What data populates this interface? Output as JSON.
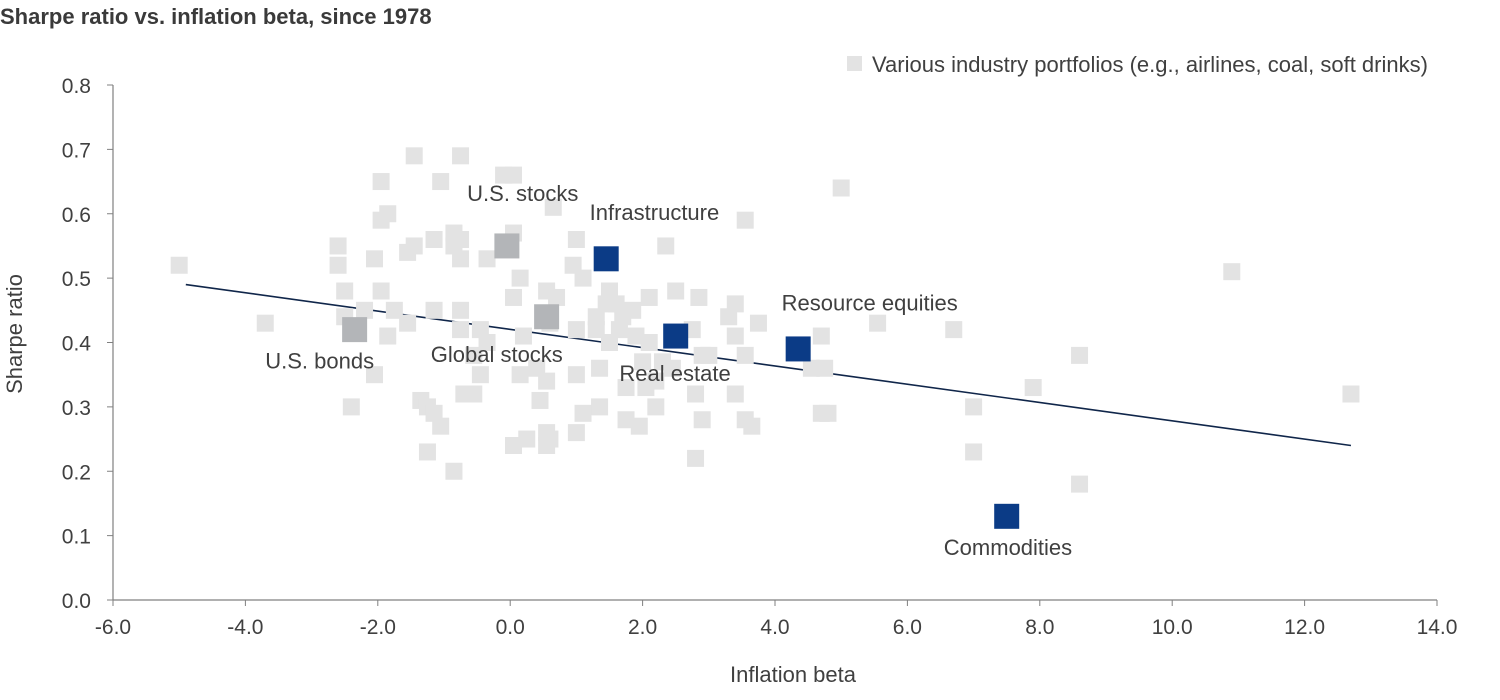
{
  "chart_data": {
    "type": "scatter",
    "title": "Sharpe ratio vs. inflation beta, since 1978",
    "xlabel": "Inflation beta",
    "ylabel": "Sharpe ratio",
    "xlim": [
      -6.0,
      14.0
    ],
    "ylim": [
      0.0,
      0.8
    ],
    "x_ticks": [
      -6.0,
      -4.0,
      -2.0,
      0.0,
      2.0,
      4.0,
      6.0,
      8.0,
      10.0,
      12.0,
      14.0
    ],
    "y_ticks": [
      0.0,
      0.1,
      0.2,
      0.3,
      0.4,
      0.5,
      0.6,
      0.7,
      0.8
    ],
    "x_tick_labels": [
      "-6.0",
      "-4.0",
      "-2.0",
      "0.0",
      "2.0",
      "4.0",
      "6.0",
      "8.0",
      "10.0",
      "12.0",
      "14.0"
    ],
    "y_tick_labels": [
      "0.0",
      "0.1",
      "0.2",
      "0.3",
      "0.4",
      "0.5",
      "0.6",
      "0.7",
      "0.8"
    ],
    "grid": false,
    "legend": {
      "placement": "top-right",
      "entries": [
        {
          "label": "Various industry portfolios (e.g., airlines, coal, soft drinks)",
          "color": "#e3e3e3"
        }
      ]
    },
    "colors": {
      "industry": "#e3e3e3",
      "benchmark": "#b3b5b8",
      "real_asset": "#0b3b86",
      "trendline": "#10264a",
      "axis": "#808080",
      "text": "#404040"
    },
    "trendline": {
      "x": [
        -4.9,
        12.7
      ],
      "y": [
        0.49,
        0.24
      ]
    },
    "series": [
      {
        "name": "Various industry portfolios (e.g., airlines, coal, soft drinks)",
        "color": "#e3e3e3",
        "points": [
          [
            -5.0,
            0.52
          ],
          [
            -3.7,
            0.43
          ],
          [
            -2.6,
            0.55
          ],
          [
            -2.6,
            0.52
          ],
          [
            -2.5,
            0.48
          ],
          [
            -2.5,
            0.44
          ],
          [
            -2.4,
            0.3
          ],
          [
            -2.2,
            0.45
          ],
          [
            -2.05,
            0.53
          ],
          [
            -1.95,
            0.65
          ],
          [
            -1.95,
            0.59
          ],
          [
            -1.85,
            0.6
          ],
          [
            -1.95,
            0.48
          ],
          [
            -1.85,
            0.41
          ],
          [
            -2.05,
            0.35
          ],
          [
            -1.75,
            0.45
          ],
          [
            -1.55,
            0.54
          ],
          [
            -1.45,
            0.55
          ],
          [
            -1.45,
            0.69
          ],
          [
            -1.55,
            0.43
          ],
          [
            -1.35,
            0.31
          ],
          [
            -1.25,
            0.3
          ],
          [
            -1.15,
            0.29
          ],
          [
            -1.25,
            0.23
          ],
          [
            -1.05,
            0.27
          ],
          [
            -1.15,
            0.56
          ],
          [
            -1.05,
            0.65
          ],
          [
            -1.15,
            0.45
          ],
          [
            -0.85,
            0.57
          ],
          [
            -0.85,
            0.55
          ],
          [
            -0.75,
            0.69
          ],
          [
            -0.75,
            0.56
          ],
          [
            -0.75,
            0.53
          ],
          [
            -0.75,
            0.45
          ],
          [
            -0.75,
            0.42
          ],
          [
            -0.85,
            0.2
          ],
          [
            -0.7,
            0.32
          ],
          [
            -0.55,
            0.32
          ],
          [
            -0.55,
            0.38
          ],
          [
            -0.45,
            0.35
          ],
          [
            -0.45,
            0.42
          ],
          [
            -0.35,
            0.4
          ],
          [
            -0.35,
            0.53
          ],
          [
            -0.1,
            0.66
          ],
          [
            0.05,
            0.66
          ],
          [
            0.05,
            0.57
          ],
          [
            0.05,
            0.47
          ],
          [
            0.05,
            0.24
          ],
          [
            0.15,
            0.5
          ],
          [
            0.15,
            0.35
          ],
          [
            0.25,
            0.25
          ],
          [
            0.2,
            0.41
          ],
          [
            0.4,
            0.36
          ],
          [
            0.45,
            0.31
          ],
          [
            0.55,
            0.26
          ],
          [
            0.55,
            0.24
          ],
          [
            0.55,
            0.48
          ],
          [
            0.6,
            0.25
          ],
          [
            0.6,
            0.43
          ],
          [
            0.55,
            0.34
          ],
          [
            0.7,
            0.47
          ],
          [
            0.65,
            0.61
          ],
          [
            0.95,
            0.52
          ],
          [
            1.0,
            0.56
          ],
          [
            1.0,
            0.42
          ],
          [
            1.0,
            0.35
          ],
          [
            1.0,
            0.26
          ],
          [
            1.1,
            0.29
          ],
          [
            1.1,
            0.5
          ],
          [
            1.3,
            0.44
          ],
          [
            1.3,
            0.42
          ],
          [
            1.35,
            0.36
          ],
          [
            1.35,
            0.3
          ],
          [
            1.45,
            0.46
          ],
          [
            1.5,
            0.48
          ],
          [
            1.5,
            0.4
          ],
          [
            1.6,
            0.46
          ],
          [
            1.65,
            0.42
          ],
          [
            1.7,
            0.44
          ],
          [
            1.75,
            0.33
          ],
          [
            1.75,
            0.28
          ],
          [
            1.85,
            0.45
          ],
          [
            1.9,
            0.41
          ],
          [
            1.95,
            0.27
          ],
          [
            2.0,
            0.37
          ],
          [
            2.05,
            0.33
          ],
          [
            2.1,
            0.47
          ],
          [
            2.1,
            0.4
          ],
          [
            2.2,
            0.3
          ],
          [
            2.2,
            0.34
          ],
          [
            2.3,
            0.37
          ],
          [
            2.35,
            0.55
          ],
          [
            2.45,
            0.36
          ],
          [
            2.5,
            0.48
          ],
          [
            2.75,
            0.42
          ],
          [
            2.8,
            0.32
          ],
          [
            2.8,
            0.22
          ],
          [
            2.85,
            0.47
          ],
          [
            2.9,
            0.38
          ],
          [
            2.9,
            0.28
          ],
          [
            3.0,
            0.38
          ],
          [
            3.3,
            0.44
          ],
          [
            3.4,
            0.46
          ],
          [
            3.4,
            0.41
          ],
          [
            3.4,
            0.32
          ],
          [
            3.55,
            0.59
          ],
          [
            3.55,
            0.38
          ],
          [
            3.55,
            0.28
          ],
          [
            3.65,
            0.27
          ],
          [
            3.75,
            0.43
          ],
          [
            4.55,
            0.36
          ],
          [
            4.7,
            0.41
          ],
          [
            4.7,
            0.29
          ],
          [
            4.75,
            0.36
          ],
          [
            4.8,
            0.29
          ],
          [
            5.0,
            0.64
          ],
          [
            5.55,
            0.43
          ],
          [
            6.7,
            0.42
          ],
          [
            7.0,
            0.3
          ],
          [
            7.0,
            0.23
          ],
          [
            7.9,
            0.33
          ],
          [
            8.6,
            0.38
          ],
          [
            8.6,
            0.18
          ],
          [
            10.9,
            0.51
          ],
          [
            12.7,
            0.32
          ]
        ]
      },
      {
        "name": "U.S. stocks",
        "color": "#b3b5b8",
        "points": [
          [
            -0.05,
            0.55
          ]
        ]
      },
      {
        "name": "Global stocks",
        "color": "#b3b5b8",
        "points": [
          [
            0.55,
            0.44
          ]
        ]
      },
      {
        "name": "U.S. bonds",
        "color": "#b3b5b8",
        "points": [
          [
            -2.35,
            0.42
          ]
        ]
      },
      {
        "name": "Infrastructure",
        "color": "#0b3b86",
        "points": [
          [
            1.45,
            0.53
          ]
        ]
      },
      {
        "name": "Real estate",
        "color": "#0b3b86",
        "points": [
          [
            2.5,
            0.41
          ]
        ]
      },
      {
        "name": "Resource equities",
        "color": "#0b3b86",
        "points": [
          [
            4.35,
            0.39
          ]
        ]
      },
      {
        "name": "Commodities",
        "color": "#0b3b86",
        "points": [
          [
            7.5,
            0.13
          ]
        ]
      }
    ],
    "annotations": [
      {
        "text": "U.S. stocks",
        "x": -0.65,
        "y": 0.62
      },
      {
        "text": "Global stocks",
        "x": -1.2,
        "y": 0.37
      },
      {
        "text": "U.S. bonds",
        "x": -3.7,
        "y": 0.36
      },
      {
        "text": "Infrastructure",
        "x": 1.2,
        "y": 0.59
      },
      {
        "text": "Real estate",
        "x": 1.65,
        "y": 0.34
      },
      {
        "text": "Resource equities",
        "x": 4.1,
        "y": 0.45
      },
      {
        "text": "Commodities",
        "x": 6.55,
        "y": 0.07
      }
    ]
  }
}
